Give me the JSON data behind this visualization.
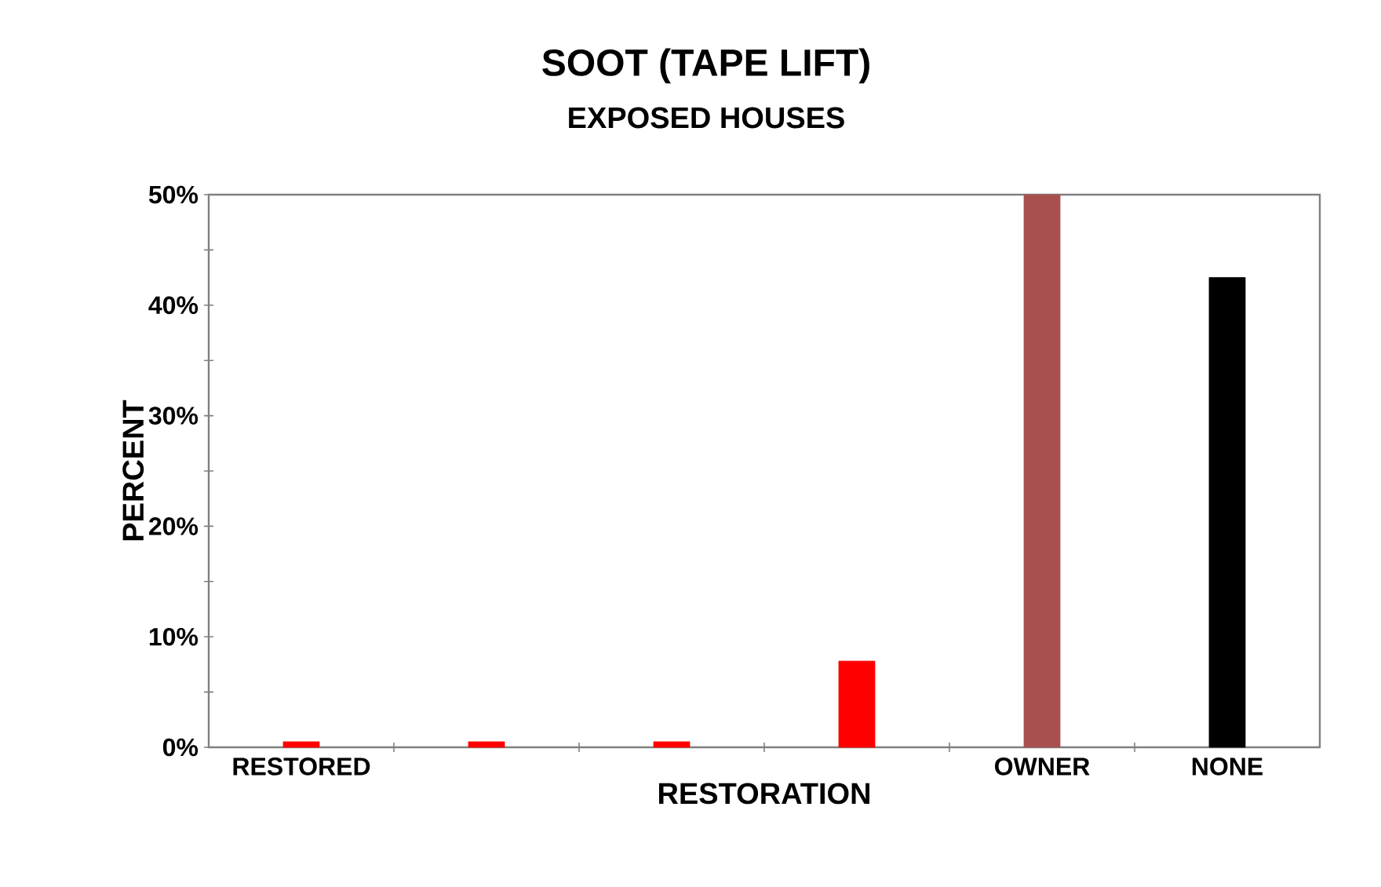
{
  "chart_data": {
    "type": "bar",
    "title": "SOOT (TAPE LIFT)",
    "subtitle": "EXPOSED HOUSES",
    "xlabel": "RESTORATION",
    "ylabel": "PERCENT",
    "categories": [
      "RESTORED",
      null,
      null,
      null,
      "OWNER",
      "NONE"
    ],
    "values": [
      0.5,
      0.5,
      0.5,
      7.8,
      50,
      42.5
    ],
    "colors": [
      "#ff0000",
      "#ff0000",
      "#ff0000",
      "#ff0000",
      "#a85050",
      "#000000"
    ],
    "ylim": [
      0,
      50
    ],
    "yticks": [
      {
        "value": 0,
        "label": "0%"
      },
      {
        "value": 5,
        "label": null
      },
      {
        "value": 10,
        "label": "10%"
      },
      {
        "value": 15,
        "label": null
      },
      {
        "value": 20,
        "label": "20%"
      },
      {
        "value": 25,
        "label": null
      },
      {
        "value": 30,
        "label": "30%"
      },
      {
        "value": 35,
        "label": null
      },
      {
        "value": 40,
        "label": "40%"
      },
      {
        "value": 45,
        "label": null
      },
      {
        "value": 50,
        "label": "50%"
      }
    ],
    "grid": false
  }
}
